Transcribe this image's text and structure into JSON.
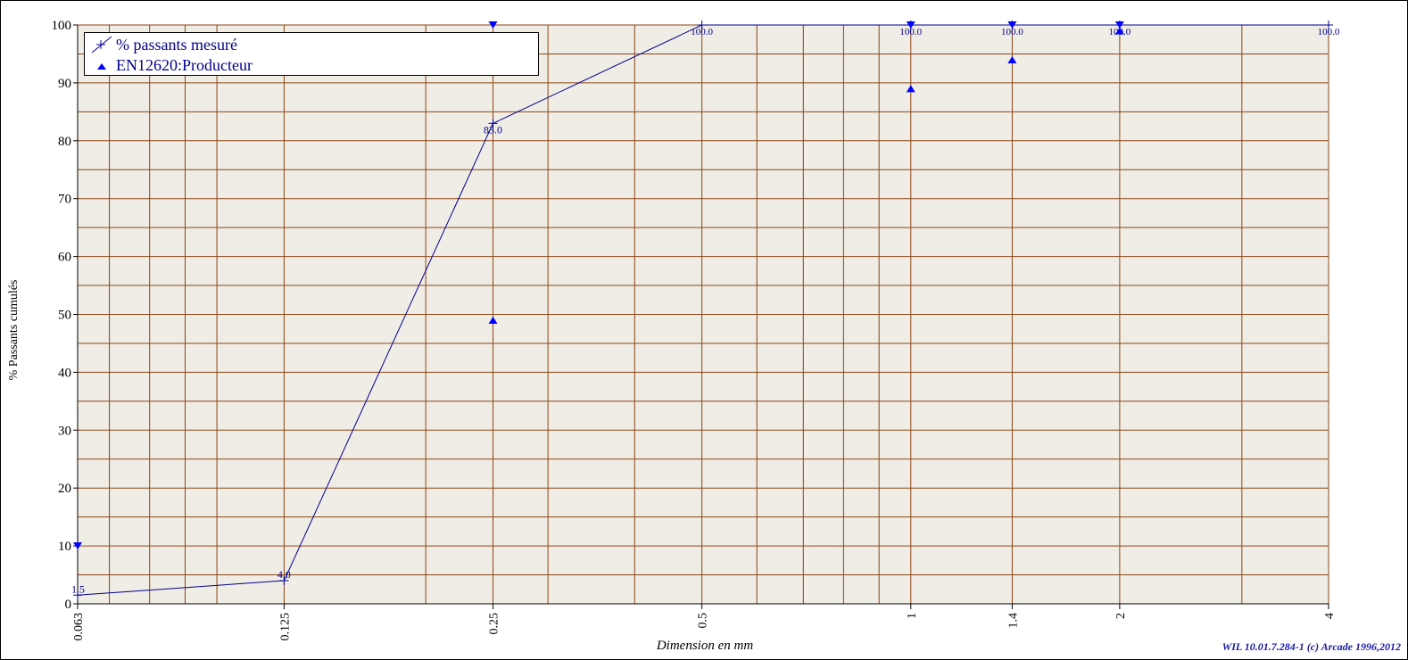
{
  "chart_data": {
    "type": "line",
    "xscale": "log",
    "x_ticks": [
      "0.063",
      "0.125",
      "0.25",
      "0.5",
      "1",
      "1.4",
      "2",
      "4"
    ],
    "xlim": [
      0.063,
      4
    ],
    "ylim": [
      0,
      100
    ],
    "y_ticks": [
      0,
      10,
      20,
      30,
      40,
      50,
      60,
      70,
      80,
      90,
      100
    ],
    "xlabel": "Dimension en mm",
    "ylabel": "% Passants cumulés",
    "grid": true,
    "legend_position": "top-left",
    "series": [
      {
        "name": "% passants mesuré",
        "marker": "plus",
        "color": "#00008b",
        "points": [
          {
            "x": 0.063,
            "y": 1.5,
            "label": "1.5"
          },
          {
            "x": 0.125,
            "y": 4.0,
            "label": "4.0"
          },
          {
            "x": 0.25,
            "y": 83.0,
            "label": "83.0"
          },
          {
            "x": 0.5,
            "y": 100.0,
            "label": "100.0"
          },
          {
            "x": 1,
            "y": 100.0,
            "label": "100.0"
          },
          {
            "x": 1.4,
            "y": 100.0,
            "label": "100.0"
          },
          {
            "x": 2,
            "y": 100.0,
            "label": "100.0"
          },
          {
            "x": 4,
            "y": 100.0,
            "label": "100.0"
          }
        ]
      },
      {
        "name": "EN12620:Producteur",
        "color": "#0000ff",
        "lower": [
          {
            "x": 0.25,
            "y": 49
          },
          {
            "x": 1,
            "y": 89
          },
          {
            "x": 1.4,
            "y": 94
          },
          {
            "x": 2,
            "y": 99
          }
        ],
        "upper": [
          {
            "x": 0.063,
            "y": 10
          },
          {
            "x": 0.25,
            "y": 100
          },
          {
            "x": 1,
            "y": 100
          },
          {
            "x": 1.4,
            "y": 100
          },
          {
            "x": 2,
            "y": 100
          }
        ]
      }
    ]
  },
  "credit": "WIL 10.01.7.284-1 (c) Arcade 1996,2012",
  "colors": {
    "plot_background": "#f0ede6",
    "grid": "#8b4513",
    "line": "#00008b",
    "markers": "#0000ff"
  }
}
